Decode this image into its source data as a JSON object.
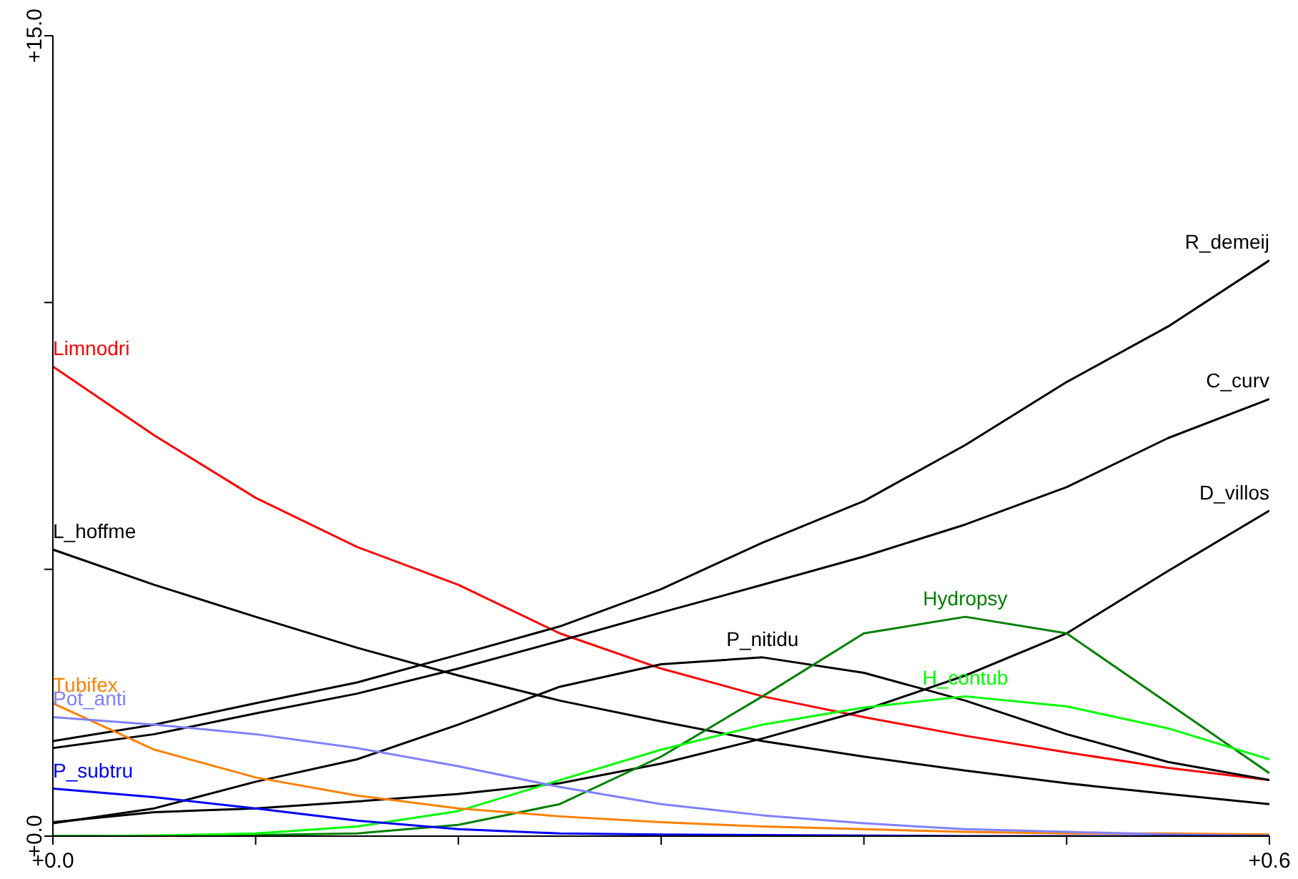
{
  "chart_data": {
    "type": "line",
    "x": [
      0,
      0.05,
      0.1,
      0.15,
      0.2,
      0.25,
      0.3,
      0.35,
      0.4,
      0.45,
      0.5,
      0.55,
      0.6
    ],
    "xlim": [
      0,
      0.6
    ],
    "ylim": [
      0,
      15
    ],
    "xticks": [
      {
        "value": 0,
        "label": "+0.0"
      },
      {
        "value": 0.1,
        "label": null
      },
      {
        "value": 0.2,
        "label": null
      },
      {
        "value": 0.3,
        "label": null
      },
      {
        "value": 0.4,
        "label": null
      },
      {
        "value": 0.5,
        "label": null
      },
      {
        "value": 0.6,
        "label": "+0.6"
      }
    ],
    "yticks": [
      {
        "value": 0,
        "label": "+0.0"
      },
      {
        "value": 5,
        "label": null
      },
      {
        "value": 10,
        "label": null
      },
      {
        "value": 15,
        "label": "+15.0"
      }
    ],
    "grid": false,
    "legend": false,
    "marker": "none",
    "line_style": "solid",
    "series": [
      {
        "name": "Limnodri",
        "color": "#ff0000",
        "values": [
          8.8,
          7.51,
          6.34,
          5.42,
          4.71,
          3.8,
          3.14,
          2.62,
          2.23,
          1.88,
          1.57,
          1.28,
          1.05
        ]
      },
      {
        "name": "L_hoffme",
        "color": "#000000",
        "values": [
          5.37,
          4.71,
          4.11,
          3.53,
          3.01,
          2.54,
          2.15,
          1.78,
          1.49,
          1.23,
          0.99,
          0.79,
          0.6
        ]
      },
      {
        "name": "R_demeij",
        "color": "#000000",
        "values": [
          1.78,
          2.09,
          2.49,
          2.88,
          3.4,
          3.93,
          4.63,
          5.5,
          6.28,
          7.33,
          8.51,
          9.55,
          10.79
        ]
      },
      {
        "name": "C_curv",
        "color": "#000000",
        "values": [
          1.65,
          1.91,
          2.3,
          2.67,
          3.14,
          3.66,
          4.19,
          4.71,
          5.24,
          5.84,
          6.54,
          7.46,
          8.19
        ]
      },
      {
        "name": "D_villos",
        "color": "#000000",
        "values": [
          0.26,
          0.45,
          0.52,
          0.65,
          0.79,
          0.99,
          1.36,
          1.83,
          2.36,
          3.01,
          3.8,
          4.97,
          6.1
        ]
      },
      {
        "name": "P_nitidu",
        "color": "#000000",
        "values": [
          0.24,
          0.52,
          1.02,
          1.44,
          2.09,
          2.8,
          3.22,
          3.35,
          3.06,
          2.54,
          1.91,
          1.39,
          1.05
        ]
      },
      {
        "name": "Hydropsy",
        "color": "#008000",
        "values": [
          0,
          0.01,
          0.02,
          0.05,
          0.21,
          0.6,
          1.49,
          2.62,
          3.8,
          4.11,
          3.8,
          2.49,
          1.18
        ]
      },
      {
        "name": "H_contub",
        "color": "#00ff00",
        "values": [
          0,
          0.01,
          0.05,
          0.18,
          0.47,
          1.05,
          1.62,
          2.09,
          2.41,
          2.62,
          2.43,
          2.02,
          1.44
        ]
      },
      {
        "name": "Tubifex",
        "color": "#ff8000",
        "values": [
          2.49,
          1.62,
          1.1,
          0.76,
          0.52,
          0.37,
          0.26,
          0.18,
          0.13,
          0.08,
          0.05,
          0.05,
          0.03
        ]
      },
      {
        "name": "Pot_anti",
        "color": "#8080ff",
        "values": [
          2.23,
          2.09,
          1.91,
          1.65,
          1.31,
          0.92,
          0.6,
          0.39,
          0.24,
          0.13,
          0.08,
          0.03,
          0
        ]
      },
      {
        "name": "P_subtru",
        "color": "#0000ff",
        "values": [
          0.89,
          0.73,
          0.52,
          0.29,
          0.13,
          0.05,
          0.03,
          0.02,
          0.01,
          0,
          0,
          0,
          0
        ]
      }
    ]
  }
}
